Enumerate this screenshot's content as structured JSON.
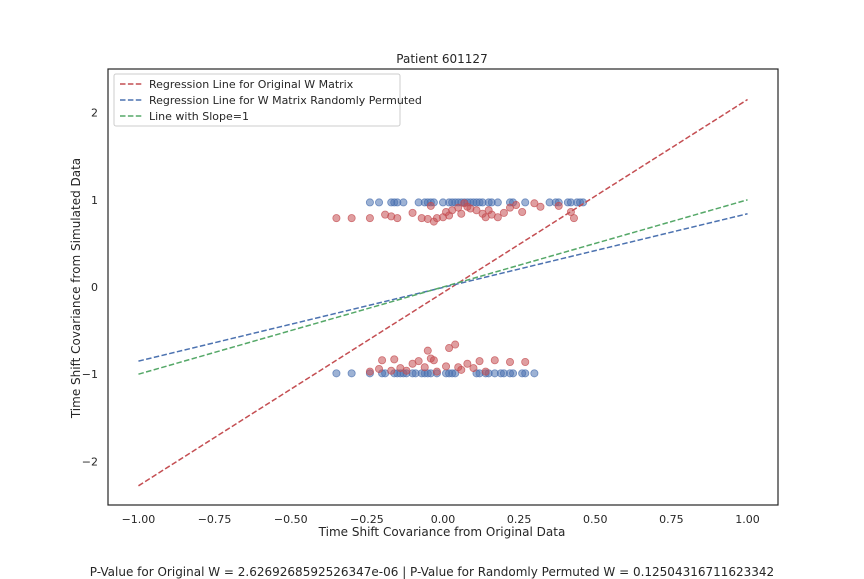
{
  "chart_data": {
    "type": "scatter",
    "title": "Patient 601127",
    "xlabel": "Time Shift Covariance from Original Data",
    "ylabel": "Time Shift Covariance from Simulated Data",
    "xlim": [
      -1.1,
      1.1
    ],
    "ylim": [
      -2.5,
      2.5
    ],
    "xticks": [
      "−1.00",
      "−0.75",
      "−0.50",
      "−0.25",
      "0.00",
      "0.25",
      "0.50",
      "0.75",
      "1.00"
    ],
    "xtick_values": [
      -1.0,
      -0.75,
      -0.5,
      -0.25,
      0.0,
      0.25,
      0.5,
      0.75,
      1.0
    ],
    "yticks": [
      "−2",
      "−1",
      "0",
      "1",
      "2"
    ],
    "ytick_values": [
      -2,
      -1,
      0,
      1,
      2
    ],
    "grid": false,
    "legend_position": "top-left",
    "lines": [
      {
        "name": "Regression Line for Original W Matrix",
        "color": "#c44e52",
        "style": "dashed",
        "x": [
          -1.0,
          1.0
        ],
        "y": [
          -2.28,
          2.15
        ]
      },
      {
        "name": "Regression Line for W Matrix Randomly Permuted",
        "color": "#4c72b0",
        "style": "dashed",
        "x": [
          -1.0,
          1.0
        ],
        "y": [
          -0.85,
          0.84
        ]
      },
      {
        "name": "Line with Slope=1",
        "color": "#55a868",
        "style": "dashed",
        "x": [
          -1.0,
          1.0
        ],
        "y": [
          -1.0,
          1.0
        ]
      }
    ],
    "scatter_series": [
      {
        "color": "#4c72b0",
        "points": [
          [
            -0.24,
            0.97
          ],
          [
            -0.21,
            0.97
          ],
          [
            -0.17,
            0.97
          ],
          [
            -0.16,
            0.97
          ],
          [
            -0.15,
            0.97
          ],
          [
            -0.13,
            0.97
          ],
          [
            -0.08,
            0.97
          ],
          [
            -0.06,
            0.97
          ],
          [
            -0.05,
            0.97
          ],
          [
            -0.04,
            0.97
          ],
          [
            -0.03,
            0.97
          ],
          [
            0.0,
            0.97
          ],
          [
            0.02,
            0.97
          ],
          [
            0.03,
            0.97
          ],
          [
            0.04,
            0.97
          ],
          [
            0.05,
            0.97
          ],
          [
            0.06,
            0.97
          ],
          [
            0.07,
            0.97
          ],
          [
            0.08,
            0.97
          ],
          [
            0.09,
            0.97
          ],
          [
            0.1,
            0.97
          ],
          [
            0.11,
            0.97
          ],
          [
            0.12,
            0.97
          ],
          [
            0.13,
            0.97
          ],
          [
            0.15,
            0.97
          ],
          [
            0.16,
            0.97
          ],
          [
            0.18,
            0.97
          ],
          [
            0.22,
            0.97
          ],
          [
            0.23,
            0.97
          ],
          [
            0.27,
            0.97
          ],
          [
            0.35,
            0.97
          ],
          [
            0.37,
            0.97
          ],
          [
            0.38,
            0.97
          ],
          [
            0.41,
            0.97
          ],
          [
            0.42,
            0.97
          ],
          [
            0.44,
            0.97
          ],
          [
            0.45,
            0.97
          ],
          [
            0.46,
            0.97
          ],
          [
            -0.35,
            -0.99
          ],
          [
            -0.3,
            -0.99
          ],
          [
            -0.24,
            -0.99
          ],
          [
            -0.2,
            -0.99
          ],
          [
            -0.19,
            -0.99
          ],
          [
            -0.16,
            -0.99
          ],
          [
            -0.15,
            -0.99
          ],
          [
            -0.14,
            -0.99
          ],
          [
            -0.13,
            -0.99
          ],
          [
            -0.12,
            -0.99
          ],
          [
            -0.1,
            -0.99
          ],
          [
            -0.09,
            -0.99
          ],
          [
            -0.07,
            -0.99
          ],
          [
            -0.06,
            -0.99
          ],
          [
            -0.05,
            -0.99
          ],
          [
            -0.04,
            -0.99
          ],
          [
            -0.02,
            -0.99
          ],
          [
            0.01,
            -0.99
          ],
          [
            0.02,
            -0.99
          ],
          [
            0.03,
            -0.99
          ],
          [
            0.04,
            -0.99
          ],
          [
            0.11,
            -0.99
          ],
          [
            0.12,
            -0.99
          ],
          [
            0.14,
            -0.99
          ],
          [
            0.15,
            -0.99
          ],
          [
            0.17,
            -0.99
          ],
          [
            0.19,
            -0.99
          ],
          [
            0.2,
            -0.99
          ],
          [
            0.22,
            -0.99
          ],
          [
            0.23,
            -0.99
          ],
          [
            0.26,
            -0.99
          ],
          [
            0.27,
            -0.99
          ],
          [
            0.3,
            -0.99
          ]
        ]
      },
      {
        "color": "#c44e52",
        "points": [
          [
            -0.35,
            0.79
          ],
          [
            -0.3,
            0.79
          ],
          [
            -0.24,
            0.79
          ],
          [
            -0.19,
            0.83
          ],
          [
            -0.17,
            0.81
          ],
          [
            -0.15,
            0.79
          ],
          [
            -0.1,
            0.85
          ],
          [
            -0.07,
            0.79
          ],
          [
            -0.05,
            0.78
          ],
          [
            -0.04,
            0.93
          ],
          [
            -0.03,
            0.75
          ],
          [
            -0.02,
            0.79
          ],
          [
            0.0,
            0.8
          ],
          [
            0.01,
            0.86
          ],
          [
            0.02,
            0.82
          ],
          [
            0.03,
            0.88
          ],
          [
            0.05,
            0.91
          ],
          [
            0.06,
            0.84
          ],
          [
            0.07,
            0.96
          ],
          [
            0.08,
            0.92
          ],
          [
            0.09,
            0.9
          ],
          [
            0.11,
            0.88
          ],
          [
            0.13,
            0.84
          ],
          [
            0.14,
            0.8
          ],
          [
            0.15,
            0.88
          ],
          [
            0.16,
            0.83
          ],
          [
            0.18,
            0.8
          ],
          [
            0.2,
            0.85
          ],
          [
            0.22,
            0.91
          ],
          [
            0.24,
            0.94
          ],
          [
            0.26,
            0.86
          ],
          [
            0.3,
            0.96
          ],
          [
            0.32,
            0.92
          ],
          [
            0.38,
            0.93
          ],
          [
            0.42,
            0.86
          ],
          [
            0.43,
            0.79
          ],
          [
            -0.24,
            -0.97
          ],
          [
            -0.21,
            -0.94
          ],
          [
            -0.2,
            -0.84
          ],
          [
            -0.17,
            -0.96
          ],
          [
            -0.16,
            -0.83
          ],
          [
            -0.14,
            -0.93
          ],
          [
            -0.12,
            -0.96
          ],
          [
            -0.1,
            -0.88
          ],
          [
            -0.08,
            -0.85
          ],
          [
            -0.06,
            -0.92
          ],
          [
            -0.05,
            -0.73
          ],
          [
            -0.04,
            -0.82
          ],
          [
            -0.03,
            -0.84
          ],
          [
            -0.02,
            -0.97
          ],
          [
            0.01,
            -0.91
          ],
          [
            0.02,
            -0.7
          ],
          [
            0.04,
            -0.66
          ],
          [
            0.05,
            -0.92
          ],
          [
            0.06,
            -0.95
          ],
          [
            0.08,
            -0.88
          ],
          [
            0.1,
            -0.93
          ],
          [
            0.12,
            -0.85
          ],
          [
            0.14,
            -0.97
          ],
          [
            0.17,
            -0.84
          ],
          [
            0.22,
            -0.86
          ],
          [
            0.27,
            -0.86
          ]
        ]
      }
    ]
  },
  "caption": "P-Value for Original W = 2.6269268592526347e-06 | P-Value for Randomly Permuted W = 0.12504316711623342"
}
